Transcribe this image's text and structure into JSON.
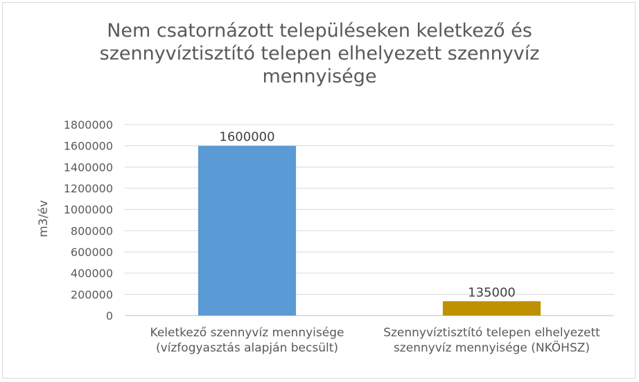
{
  "chart_data": {
    "type": "bar",
    "title_lines": [
      "Nem csatornázott településeken keletkező és",
      "szennyvíztisztító telepen elhelyezett  szennyvíz",
      "mennyisége"
    ],
    "ylabel": "m3/év",
    "xlabel": "",
    "ylim": [
      0,
      1800000
    ],
    "yticks": [
      0,
      200000,
      400000,
      600000,
      800000,
      1000000,
      1200000,
      1400000,
      1600000,
      1800000
    ],
    "grid": true,
    "categories": [
      [
        "Keletkező szennyvíz mennyisége",
        "(vízfogyasztás alapján becsült)"
      ],
      [
        "Szennyvíztisztító telepen elhelyezett",
        "szennyvíz mennyisége (NKÖHSZ)"
      ]
    ],
    "values": [
      1600000,
      135000
    ],
    "colors": [
      "#5b9bd5",
      "#bf9000"
    ]
  }
}
